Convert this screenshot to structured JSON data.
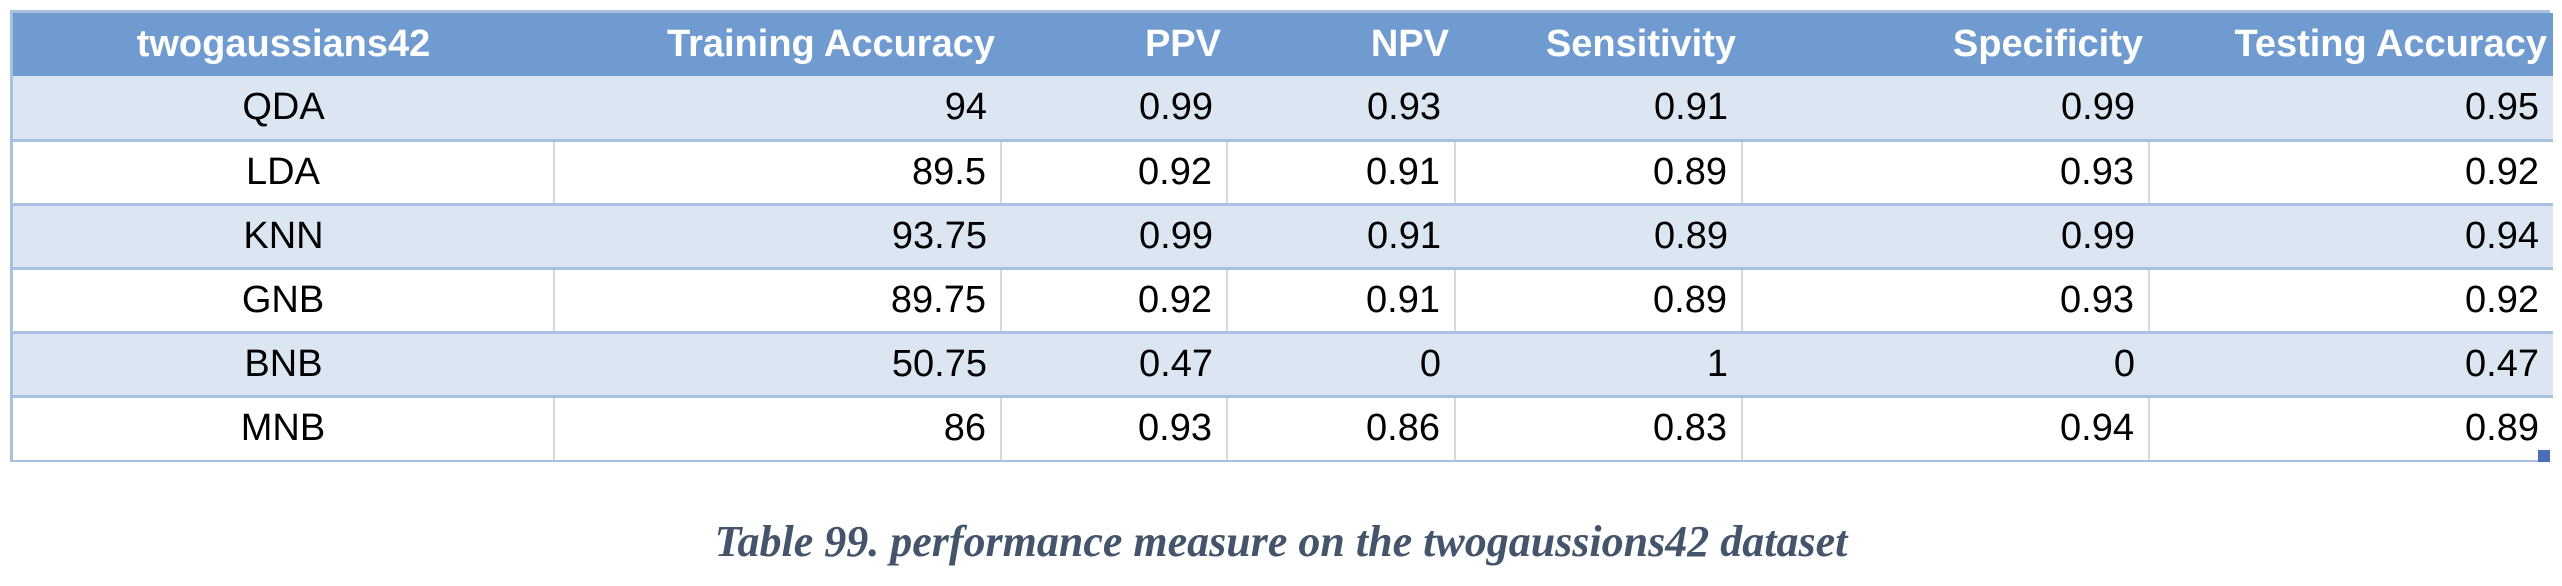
{
  "table": {
    "headers": [
      "twogaussians42",
      "Training Accuracy",
      "PPV",
      "NPV",
      "Sensitivity",
      "Specificity",
      "Testing Accuracy"
    ],
    "rows": [
      [
        "QDA",
        "94",
        "0.99",
        "0.93",
        "0.91",
        "0.99",
        "0.95"
      ],
      [
        "LDA",
        "89.5",
        "0.92",
        "0.91",
        "0.89",
        "0.93",
        "0.92"
      ],
      [
        "KNN",
        "93.75",
        "0.99",
        "0.91",
        "0.89",
        "0.99",
        "0.94"
      ],
      [
        "GNB",
        "89.75",
        "0.92",
        "0.91",
        "0.89",
        "0.93",
        "0.92"
      ],
      [
        "BNB",
        "50.75",
        "0.47",
        "0",
        "1",
        "0",
        "0.47"
      ],
      [
        "MNB",
        "86",
        "0.93",
        "0.86",
        "0.83",
        "0.94",
        "0.89"
      ]
    ]
  },
  "caption": "Table 99. performance measure on the twogaussions42 dataset",
  "colors": {
    "header_bg": "#6f9bd1",
    "band_bg": "#dce6f2",
    "border": "#a9c1e0",
    "caption_text": "#44546a"
  }
}
